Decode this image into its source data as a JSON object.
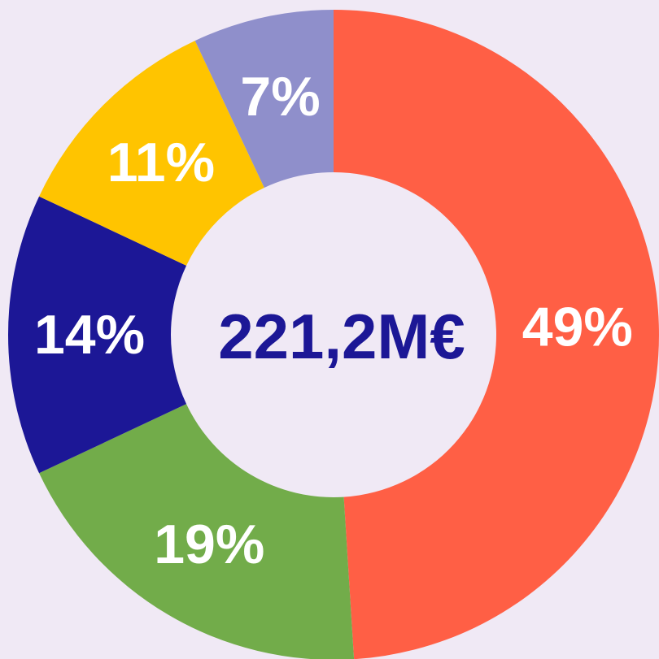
{
  "chart_data": {
    "type": "pie",
    "donut": true,
    "center_label": "221,2M€",
    "values": [
      49,
      19,
      14,
      11,
      7
    ],
    "value_labels": [
      "49%",
      "19%",
      "14%",
      "11%",
      "7%"
    ],
    "colors": [
      "#ff5f45",
      "#72ac4a",
      "#1c1796",
      "#ffc400",
      "#8f8fcb"
    ]
  }
}
